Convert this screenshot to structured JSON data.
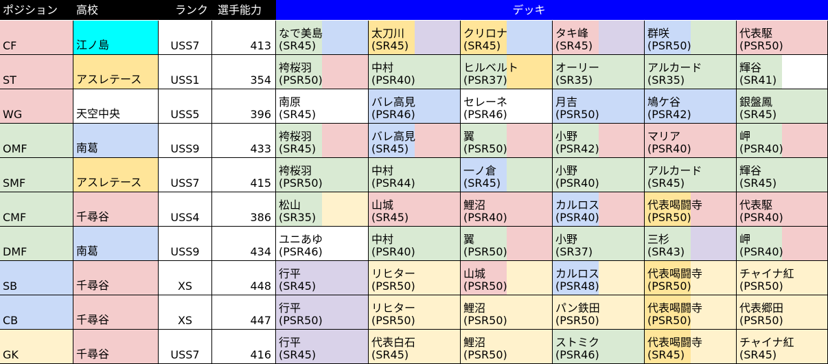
{
  "headers": {
    "position": "ポジション",
    "school": "高校",
    "rank": "ランク",
    "ability": "選手能力",
    "deck": "デッキ"
  },
  "colors": {
    "pink": "#f4cccc",
    "green": "#d9ead3",
    "blue": "#c9daf8",
    "yellow": "#fff2cc",
    "gold": "#ffe599",
    "purple": "#d9d2e9",
    "cyan": "#00ffff",
    "white": "#ffffff"
  },
  "rows": [
    {
      "position": "CF",
      "posColor": "pink",
      "school": "江ノ島",
      "schoolColor": "cyan",
      "rank": "USS7",
      "ability": "413",
      "deck": [
        {
          "name": "なで美島",
          "rarity": "(SR45)",
          "c1": "green",
          "c2": "blue"
        },
        {
          "name": "太刀川",
          "rarity": "(SR45)",
          "c1": "gold",
          "c2": "purple"
        },
        {
          "name": "クリロナ",
          "rarity": "(SR45)",
          "c1": "gold",
          "c2": "blue"
        },
        {
          "name": "タキ峰",
          "rarity": "(SR45)",
          "c1": "pink",
          "c2": "purple"
        },
        {
          "name": "群咲",
          "rarity": "(PSR50)",
          "c1": "blue",
          "c2": "green"
        },
        {
          "name": "代表駆",
          "rarity": "(PSR50)",
          "c1": "pink",
          "c2": "pink"
        }
      ]
    },
    {
      "position": "ST",
      "posColor": "pink",
      "school": "アスレテース",
      "schoolColor": "gold",
      "rank": "USS1",
      "ability": "354",
      "deck": [
        {
          "name": "袴桜羽",
          "rarity": "(PSR50)",
          "c1": "green",
          "c2": "pink"
        },
        {
          "name": "中村",
          "rarity": "(PSR40)",
          "c1": "green",
          "c2": "green"
        },
        {
          "name": "ヒルベルト",
          "rarity": "(PSR37)",
          "c1": "green",
          "c2": "gold"
        },
        {
          "name": "オーリー",
          "rarity": "(SR35)",
          "c1": "green",
          "c2": "green"
        },
        {
          "name": "アルカード",
          "rarity": "(SR35)",
          "c1": "green",
          "c2": "green"
        },
        {
          "name": "輝谷",
          "rarity": "(SR41)",
          "c1": "green",
          "c2": "white"
        }
      ]
    },
    {
      "position": "WG",
      "posColor": "pink",
      "school": "天空中央",
      "schoolColor": "white",
      "rank": "USS5",
      "ability": "396",
      "deck": [
        {
          "name": "南原",
          "rarity": "(SR45)",
          "c1": "white",
          "c2": "white"
        },
        {
          "name": "バレ高見",
          "rarity": "(PSR46)",
          "c1": "blue",
          "c2": "blue"
        },
        {
          "name": "セレーネ",
          "rarity": "(PSR46)",
          "c1": "white",
          "c2": "white"
        },
        {
          "name": "月吉",
          "rarity": "(PSR50)",
          "c1": "blue",
          "c2": "blue"
        },
        {
          "name": "鳩ケ谷",
          "rarity": "(PSR42)",
          "c1": "blue",
          "c2": "blue"
        },
        {
          "name": "銀盤鳳",
          "rarity": "(SR45)",
          "c1": "green",
          "c2": "green"
        }
      ]
    },
    {
      "position": "OMF",
      "posColor": "green",
      "school": "南葛",
      "schoolColor": "blue",
      "rank": "USS9",
      "ability": "433",
      "deck": [
        {
          "name": "袴桜羽",
          "rarity": "(SR45)",
          "c1": "green",
          "c2": "pink"
        },
        {
          "name": "バレ高見",
          "rarity": "(SR45)",
          "c1": "blue",
          "c2": "pink"
        },
        {
          "name": "翼",
          "rarity": "(PSR50)",
          "c1": "green",
          "c2": "pink"
        },
        {
          "name": "小野",
          "rarity": "(PSR42)",
          "c1": "green",
          "c2": "pink"
        },
        {
          "name": "マリア",
          "rarity": "(PSR40)",
          "c1": "pink",
          "c2": "pink"
        },
        {
          "name": "岬",
          "rarity": "(PSR40)",
          "c1": "green",
          "c2": "pink"
        }
      ]
    },
    {
      "position": "SMF",
      "posColor": "green",
      "school": "アスレテース",
      "schoolColor": "gold",
      "rank": "USS7",
      "ability": "415",
      "deck": [
        {
          "name": "袴桜羽",
          "rarity": "(PSR50)",
          "c1": "green",
          "c2": "green"
        },
        {
          "name": "中村",
          "rarity": "(PSR44)",
          "c1": "green",
          "c2": "green"
        },
        {
          "name": "一ノ倉",
          "rarity": "(SR45)",
          "c1": "blue",
          "c2": "green"
        },
        {
          "name": "小野",
          "rarity": "(PSR40)",
          "c1": "green",
          "c2": "green"
        },
        {
          "name": "アルカード",
          "rarity": "(SR45)",
          "c1": "green",
          "c2": "green"
        },
        {
          "name": "輝谷",
          "rarity": "(SR45)",
          "c1": "green",
          "c2": "green"
        }
      ]
    },
    {
      "position": "CMF",
      "posColor": "green",
      "school": "千尋谷",
      "schoolColor": "pink",
      "rank": "USS4",
      "ability": "386",
      "deck": [
        {
          "name": "松山",
          "rarity": "(SR35)",
          "c1": "green",
          "c2": "yellow"
        },
        {
          "name": "山城",
          "rarity": "(SR45)",
          "c1": "pink",
          "c2": "pink"
        },
        {
          "name": "鯉沼",
          "rarity": "(PSR40)",
          "c1": "pink",
          "c2": "pink"
        },
        {
          "name": "カルロス",
          "rarity": "(PSR40)",
          "c1": "blue",
          "c2": "pink"
        },
        {
          "name": "代表喝闘寺",
          "rarity": "(PSR50)",
          "c1": "gold",
          "c2": "pink"
        },
        {
          "name": "代表駆",
          "rarity": "(PSR40)",
          "c1": "pink",
          "c2": "pink"
        }
      ]
    },
    {
      "position": "DMF",
      "posColor": "green",
      "school": "南葛",
      "schoolColor": "blue",
      "rank": "USS9",
      "ability": "434",
      "deck": [
        {
          "name": "ユニあゆ",
          "rarity": "(PSR46)",
          "c1": "white",
          "c2": "white"
        },
        {
          "name": "中村",
          "rarity": "(PSR40)",
          "c1": "green",
          "c2": "green"
        },
        {
          "name": "翼",
          "rarity": "(PSR50)",
          "c1": "green",
          "c2": "pink"
        },
        {
          "name": "小野",
          "rarity": "(SR37)",
          "c1": "green",
          "c2": "green"
        },
        {
          "name": "三杉",
          "rarity": "(SR43)",
          "c1": "green",
          "c2": "purple"
        },
        {
          "name": "岬",
          "rarity": "(PSR40)",
          "c1": "green",
          "c2": "pink"
        }
      ]
    },
    {
      "position": "SB",
      "posColor": "blue",
      "school": "千尋谷",
      "schoolColor": "pink",
      "rank": "XS",
      "ability": "448",
      "deck": [
        {
          "name": "行平",
          "rarity": "(SR45)",
          "c1": "purple",
          "c2": "purple"
        },
        {
          "name": "リヒター",
          "rarity": "(PSR50)",
          "c1": "yellow",
          "c2": "yellow"
        },
        {
          "name": "山城",
          "rarity": "(PSR50)",
          "c1": "pink",
          "c2": "yellow"
        },
        {
          "name": "カルロス",
          "rarity": "(PSR48)",
          "c1": "blue",
          "c2": "yellow"
        },
        {
          "name": "代表喝闘寺",
          "rarity": "(PSR50)",
          "c1": "gold",
          "c2": "yellow"
        },
        {
          "name": "チャイナ紅",
          "rarity": "(PSR50)",
          "c1": "yellow",
          "c2": "yellow"
        }
      ]
    },
    {
      "position": "CB",
      "posColor": "blue",
      "school": "千尋谷",
      "schoolColor": "pink",
      "rank": "XS",
      "ability": "447",
      "deck": [
        {
          "name": "行平",
          "rarity": "(PSR50)",
          "c1": "purple",
          "c2": "purple"
        },
        {
          "name": "リヒター",
          "rarity": "(PSR50)",
          "c1": "yellow",
          "c2": "yellow"
        },
        {
          "name": "鯉沼",
          "rarity": "(PSR50)",
          "c1": "yellow",
          "c2": "yellow"
        },
        {
          "name": "パン鉄田",
          "rarity": "(PSR50)",
          "c1": "yellow",
          "c2": "yellow"
        },
        {
          "name": "代表喝闘寺",
          "rarity": "(PSR50)",
          "c1": "gold",
          "c2": "yellow"
        },
        {
          "name": "代表郷田",
          "rarity": "(PSR50)",
          "c1": "yellow",
          "c2": "yellow"
        }
      ]
    },
    {
      "position": "GK",
      "posColor": "yellow",
      "school": "千尋谷",
      "schoolColor": "pink",
      "rank": "USS7",
      "ability": "416",
      "deck": [
        {
          "name": "行平",
          "rarity": "(SR45)",
          "c1": "purple",
          "c2": "purple"
        },
        {
          "name": "代表白石",
          "rarity": "(SR45)",
          "c1": "yellow",
          "c2": "yellow"
        },
        {
          "name": "鯉沼",
          "rarity": "(PSR50)",
          "c1": "yellow",
          "c2": "yellow"
        },
        {
          "name": "ストミク",
          "rarity": "(PSR46)",
          "c1": "green",
          "c2": "green"
        },
        {
          "name": "代表喝闘寺",
          "rarity": "(SR45)",
          "c1": "gold",
          "c2": "yellow"
        },
        {
          "name": "チャイナ紅",
          "rarity": "(SR45)",
          "c1": "yellow",
          "c2": "yellow"
        }
      ]
    }
  ]
}
